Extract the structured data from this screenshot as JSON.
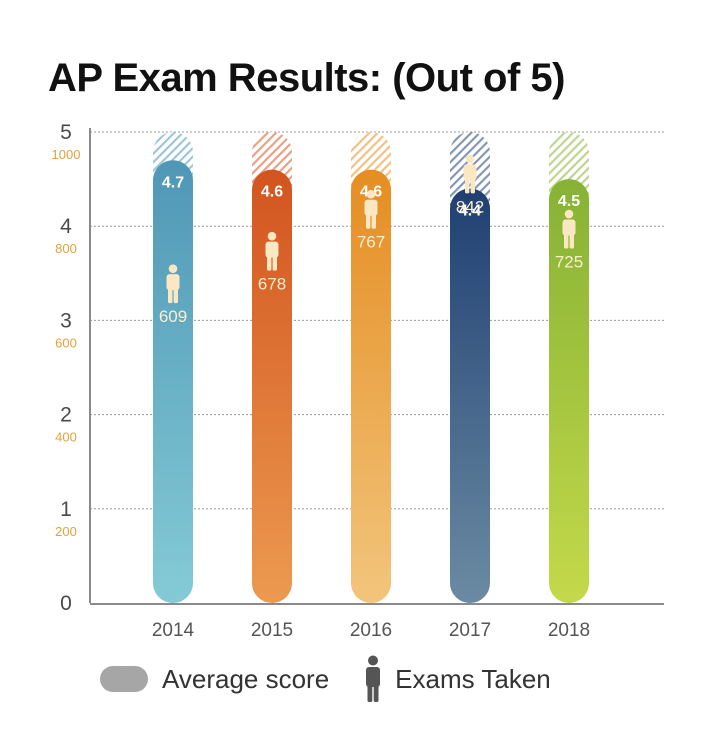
{
  "chart_data": {
    "type": "bar",
    "title": "AP Exam Results: (Out of 5)",
    "categories": [
      "2014",
      "2015",
      "2016",
      "2017",
      "2018"
    ],
    "series": [
      {
        "name": "Average score",
        "values": [
          4.7,
          4.6,
          4.6,
          4.4,
          4.5
        ]
      },
      {
        "name": "Exams Taken",
        "values": [
          609,
          678,
          767,
          842,
          725
        ]
      }
    ],
    "ylim": [
      0,
      5
    ],
    "y_ticks": [
      "0",
      "1",
      "2",
      "3",
      "4",
      "5"
    ],
    "y2lim": [
      0,
      1000
    ],
    "y2_ticks": [
      "200",
      "400",
      "600",
      "800",
      "1000"
    ],
    "grid": true,
    "legend_position": "bottom",
    "bar_colors": [
      {
        "top": "#4f97b6",
        "bottom": "#84cad6"
      },
      {
        "top": "#d2541f",
        "bottom": "#ec9a50"
      },
      {
        "top": "#e58d22",
        "bottom": "#f2c57c"
      },
      {
        "top": "#1f3f72",
        "bottom": "#6b8ba3"
      },
      {
        "top": "#86b235",
        "bottom": "#c4d94a"
      }
    ]
  },
  "legend": {
    "average_label": "Average score",
    "exams_label": "Exams Taken",
    "average_swatch_color": "#a6a6a6",
    "exams_icon": "person-icon"
  }
}
